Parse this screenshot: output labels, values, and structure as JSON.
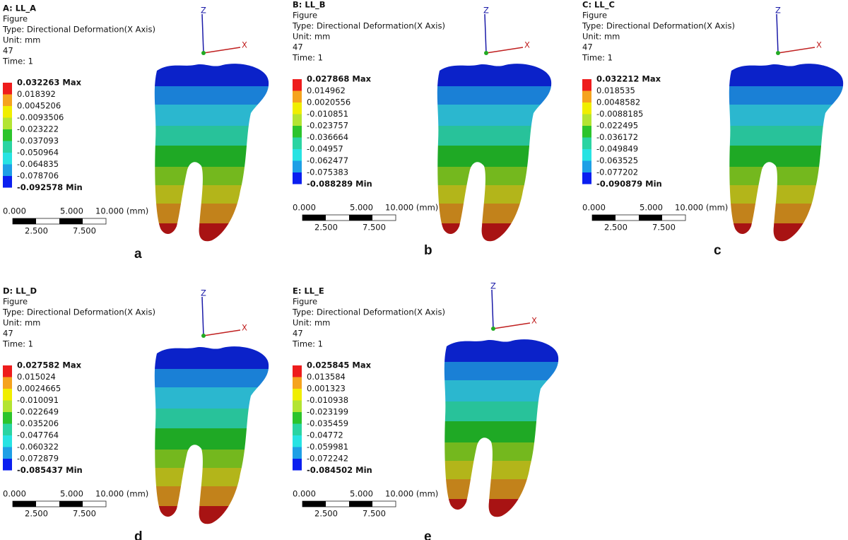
{
  "panels": [
    {
      "label": "a",
      "title": "A: LL_A",
      "lines": [
        "Figure",
        "Type: Directional Deformation(X Axis)",
        "Unit: mm",
        "47",
        "Time: 1"
      ],
      "legend": [
        "0.032263 Max",
        "0.018392",
        "0.0045206",
        "-0.0093506",
        "-0.023222",
        "-0.037093",
        "-0.050964",
        "-0.064835",
        "-0.078706",
        "-0.092578 Min"
      ],
      "scale_top": [
        "0.000",
        "5.000",
        "10.000 (mm)"
      ],
      "scale_bottom": [
        "2.500",
        "7.500"
      ],
      "axes": [
        "Z",
        "X"
      ]
    },
    {
      "label": "b",
      "title": "B: LL_B",
      "lines": [
        "Figure",
        "Type: Directional Deformation(X Axis)",
        "Unit: mm",
        "47",
        "Time: 1"
      ],
      "legend": [
        "0.027868 Max",
        "0.014962",
        "0.0020556",
        "-0.010851",
        "-0.023757",
        "-0.036664",
        "-0.04957",
        "-0.062477",
        "-0.075383",
        "-0.088289 Min"
      ],
      "scale_top": [
        "0.000",
        "5.000",
        "10.000 (mm)"
      ],
      "scale_bottom": [
        "2.500",
        "7.500"
      ],
      "axes": [
        "Z",
        "X"
      ]
    },
    {
      "label": "c",
      "title": "C: LL_C",
      "lines": [
        "Figure",
        "Type: Directional Deformation(X Axis)",
        "Unit: mm",
        "47",
        "Time: 1"
      ],
      "legend": [
        "0.032212 Max",
        "0.018535",
        "0.0048582",
        "-0.0088185",
        "-0.022495",
        "-0.036172",
        "-0.049849",
        "-0.063525",
        "-0.077202",
        "-0.090879 Min"
      ],
      "scale_top": [
        "0.000",
        "5.000",
        "10.000 (mm)"
      ],
      "scale_bottom": [
        "2.500",
        "7.500"
      ],
      "axes": [
        "Z",
        "X"
      ]
    },
    {
      "label": "d",
      "title": "D: LL_D",
      "lines": [
        "Figure",
        "Type: Directional Deformation(X Axis)",
        "Unit: mm",
        "47",
        "Time: 1"
      ],
      "legend": [
        "0.027582 Max",
        "0.015024",
        "0.0024665",
        "-0.010091",
        "-0.022649",
        "-0.035206",
        "-0.047764",
        "-0.060322",
        "-0.072879",
        "-0.085437 Min"
      ],
      "scale_top": [
        "0.000",
        "5.000",
        "10.000 (mm)"
      ],
      "scale_bottom": [
        "2.500",
        "7.500"
      ],
      "axes": [
        "Z",
        "X"
      ]
    },
    {
      "label": "e",
      "title": "E: LL_E",
      "lines": [
        "Figure",
        "Type: Directional Deformation(X Axis)",
        "Unit: mm",
        "47",
        "Time: 1"
      ],
      "legend": [
        "0.025845 Max",
        "0.013584",
        "0.001323",
        "-0.010938",
        "-0.023199",
        "-0.035459",
        "-0.04772",
        "-0.059981",
        "-0.072242",
        "-0.084502 Min"
      ],
      "scale_top": [
        "0.000",
        "5.000",
        "10.000 (mm)"
      ],
      "scale_bottom": [
        "2.500",
        "7.500"
      ],
      "axes": [
        "Z",
        "X"
      ]
    }
  ]
}
